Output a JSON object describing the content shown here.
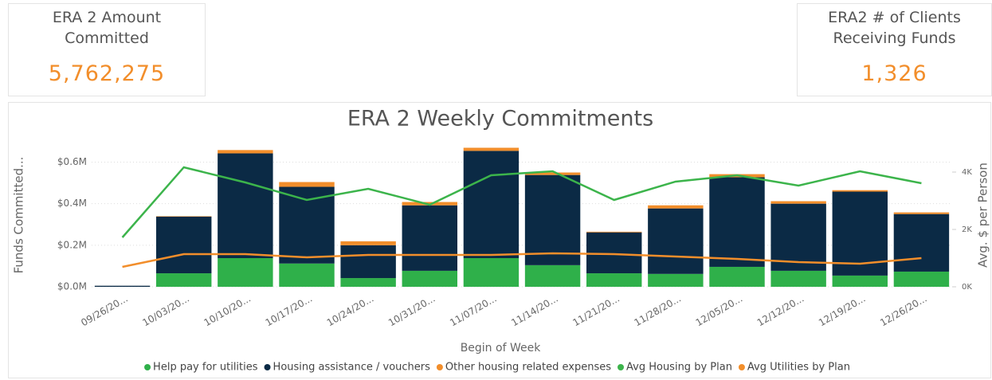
{
  "kpis": [
    {
      "title": "ERA 2 Amount Committed",
      "value": "5,762,275"
    },
    {
      "title": "ERA2 # of Clients Receiving Funds",
      "value": "1,326"
    }
  ],
  "chart_data": {
    "type": "bar",
    "title": "ERA 2 Weekly Commitments",
    "x_label": "Begin of Week",
    "y_label": "Funds Committed...",
    "y2_label": "Avg. $ per Person",
    "categories": [
      "09/26/20...",
      "10/03/20...",
      "10/10/20...",
      "10/17/20...",
      "10/24/20...",
      "10/31/20...",
      "11/07/20...",
      "11/14/20...",
      "11/21/20...",
      "11/28/20...",
      "12/05/20...",
      "12/12/20...",
      "12/19/20...",
      "12/26/20..."
    ],
    "series": [
      {
        "name": "Help pay for utilities",
        "type": "bar",
        "color": "#2fb04a",
        "values": [
          0,
          65000,
          138000,
          112000,
          42000,
          77000,
          138000,
          104000,
          65000,
          62000,
          96000,
          77000,
          54000,
          73000
        ]
      },
      {
        "name": "Housing assistance / vouchers",
        "type": "bar",
        "color": "#0b2a45",
        "values": [
          5000,
          273000,
          504000,
          369000,
          158000,
          315000,
          516000,
          434000,
          197000,
          315000,
          431000,
          323000,
          404000,
          277000
        ]
      },
      {
        "name": "Other housing related expenses",
        "type": "bar",
        "color": "#f28e2b",
        "values": [
          0,
          2000,
          16000,
          23000,
          19000,
          16000,
          15000,
          12000,
          3000,
          15000,
          15000,
          12000,
          7000,
          8000
        ]
      },
      {
        "name": "Avg Housing by Plan",
        "type": "line",
        "axis": "y2",
        "color": "#3cb44b",
        "values": [
          1722,
          4167,
          3639,
          3028,
          3417,
          2861,
          3889,
          4028,
          3028,
          3667,
          3889,
          3528,
          4028,
          3611
        ]
      },
      {
        "name": "Avg Utilities by Plan",
        "type": "line",
        "axis": "y2",
        "color": "#f28e2b",
        "values": [
          694,
          1139,
          1139,
          1028,
          1111,
          1111,
          1111,
          1167,
          1139,
          1056,
          972,
          861,
          806,
          1000
        ]
      }
    ],
    "ylim": [
      0,
      690000
    ],
    "yticks": [
      {
        "value": 0,
        "label": "$0.0M"
      },
      {
        "value": 200000,
        "label": "$0.2M"
      },
      {
        "value": 400000,
        "label": "$0.4M"
      },
      {
        "value": 600000,
        "label": "$0.6M"
      }
    ],
    "y2lim": [
      0,
      5000
    ],
    "y2ticks": [
      {
        "value": 0,
        "label": "0K"
      },
      {
        "value": 2000,
        "label": "2K"
      },
      {
        "value": 4000,
        "label": "4K"
      }
    ],
    "grid": true,
    "legend": "bottom"
  }
}
